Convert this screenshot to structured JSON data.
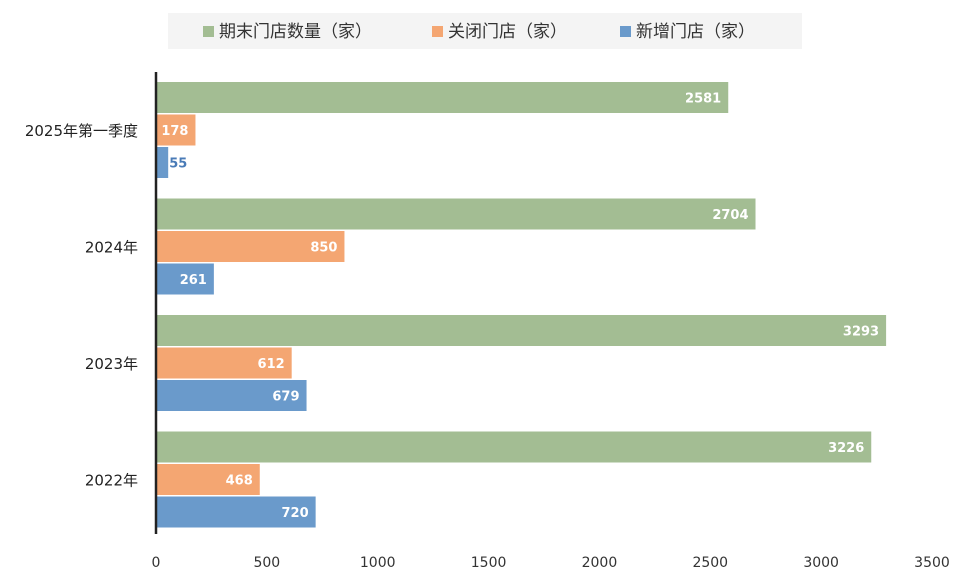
{
  "chart_data": {
    "type": "bar",
    "orientation": "horizontal",
    "categories": [
      "2025年第一季度",
      "2024年",
      "2023年",
      "2022年"
    ],
    "series": [
      {
        "name": "期末门店数量（家）",
        "color": "#a3bd93",
        "values": [
          2581,
          2704,
          3293,
          3226
        ]
      },
      {
        "name": "关闭门店（家）",
        "color": "#f4a672",
        "values": [
          178,
          850,
          612,
          468
        ]
      },
      {
        "name": "新增门店（家）",
        "color": "#6a9acb",
        "values": [
          55,
          261,
          679,
          720
        ]
      }
    ],
    "xlim": [
      0,
      3500
    ],
    "xticks": [
      0,
      500,
      1000,
      1500,
      2000,
      2500,
      3000,
      3500
    ],
    "legend_position": "top",
    "grid": false,
    "data_labels": true
  }
}
